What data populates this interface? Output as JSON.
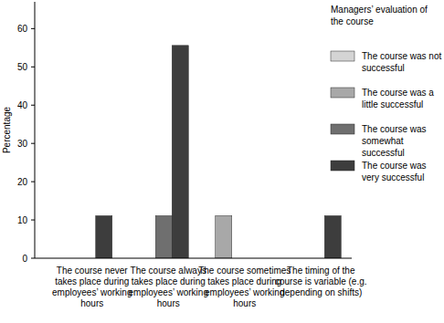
{
  "chart_data": {
    "type": "bar",
    "y_label": "Percentage",
    "legend_title": "Managers’ evaluation of the course",
    "legend": "top-right",
    "categories": [
      "The course never takes place during employees’ working hours",
      "The course always takes place during employees’ working hours",
      "The course sometimes takes place during employees’ working hours",
      "The timing of the course is variable (e.g. depending on shifts)"
    ],
    "series": [
      {
        "name": "The course was not successful",
        "color": "#d4d4d4",
        "values": [
          0,
          0,
          0,
          0
        ]
      },
      {
        "name": "The course was a little successful",
        "color": "#a8a8a8",
        "values": [
          0,
          0,
          11.1,
          0
        ]
      },
      {
        "name": "The course was somewhat successful",
        "color": "#6f6f6f",
        "values": [
          0,
          11.1,
          0,
          0
        ]
      },
      {
        "name": "The course was very successful",
        "color": "#3d3d3d",
        "values": [
          11.1,
          55.6,
          0,
          11.1
        ]
      }
    ],
    "ylim": [
      0,
      67
    ],
    "yticks": [
      0,
      10,
      20,
      30,
      40,
      50,
      60
    ]
  }
}
